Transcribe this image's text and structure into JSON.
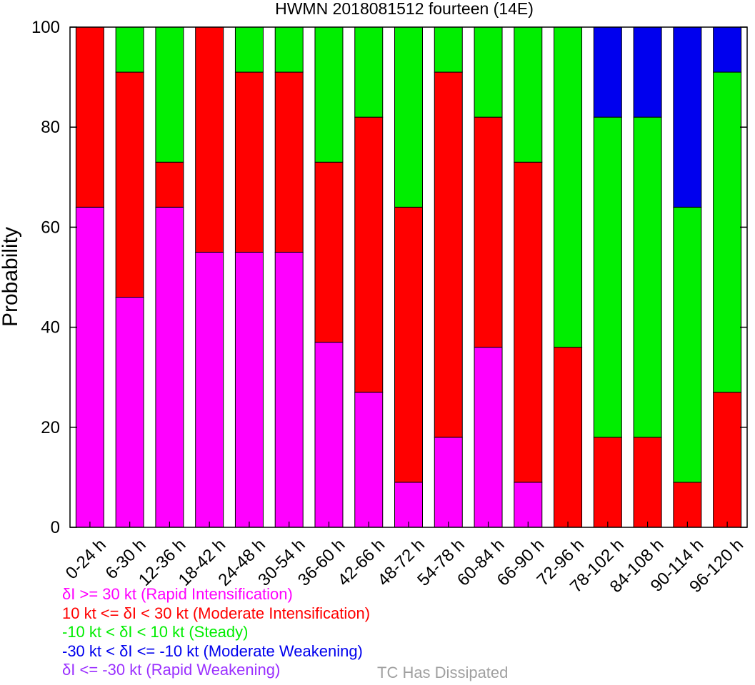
{
  "chart_data": {
    "type": "bar",
    "stacked": true,
    "title": "HWMN 2018081512 fourteen (14E)",
    "xlabel": "",
    "ylabel": "Probability",
    "ylim": [
      0,
      100
    ],
    "yticks": [
      0,
      20,
      40,
      60,
      80,
      100
    ],
    "grid": false,
    "categories": [
      "0-24 h",
      "6-30 h",
      "12-36 h",
      "18-42 h",
      "24-48 h",
      "30-54 h",
      "36-60 h",
      "42-66 h",
      "48-72 h",
      "54-78 h",
      "60-84 h",
      "66-90 h",
      "72-96 h",
      "78-102 h",
      "84-108 h",
      "90-114 h",
      "96-120 h"
    ],
    "series": [
      {
        "name": "δI >= 30 kt (Rapid Intensification)",
        "color": "#ff00ff",
        "values": [
          64,
          46,
          64,
          55,
          55,
          55,
          37,
          27,
          9,
          18,
          36,
          9,
          0,
          0,
          0,
          0,
          0
        ]
      },
      {
        "name": "10 kt <= δI < 30 kt (Moderate Intensification)",
        "color": "#ff0000",
        "values": [
          36,
          45,
          9,
          45,
          36,
          36,
          36,
          55,
          55,
          73,
          46,
          64,
          36,
          18,
          18,
          9,
          27
        ]
      },
      {
        "name": "-10 kt < δI < 10 kt (Steady)",
        "color": "#00ee00",
        "values": [
          0,
          9,
          27,
          0,
          9,
          9,
          27,
          18,
          36,
          9,
          18,
          27,
          64,
          64,
          64,
          55,
          64
        ]
      },
      {
        "name": "-30 kt < δI <= -10 kt (Moderate Weakening)",
        "color": "#0000ee",
        "values": [
          0,
          0,
          0,
          0,
          0,
          0,
          0,
          0,
          0,
          0,
          0,
          0,
          0,
          18,
          18,
          36,
          9
        ]
      },
      {
        "name": "δI <= -30 kt (Rapid Weakening)",
        "color": "#9b30ff",
        "values": [
          0,
          0,
          0,
          0,
          0,
          0,
          0,
          0,
          0,
          0,
          0,
          0,
          0,
          0,
          0,
          0,
          0
        ]
      }
    ],
    "extra_legend": {
      "label": "TC Has Dissipated",
      "color": "#a0a0a0"
    }
  }
}
